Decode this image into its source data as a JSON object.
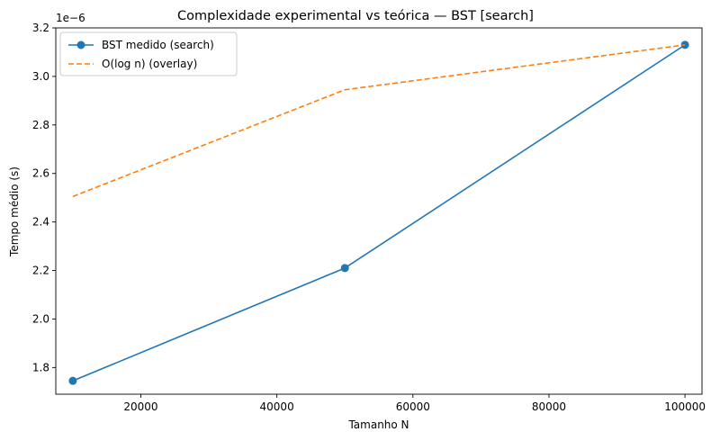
{
  "chart_data": {
    "type": "line",
    "title": "Complexidade experimental vs teórica — BST [search]",
    "xlabel": "Tamanho N",
    "ylabel": "Tempo médio (s)",
    "y_offset_text": "1e−6",
    "y_scale_exponent": -6,
    "xlim": [
      7500,
      102500
    ],
    "ylim": [
      1.69,
      3.2
    ],
    "x_ticks": [
      20000,
      40000,
      60000,
      80000,
      100000
    ],
    "x_tick_labels": [
      "20000",
      "40000",
      "60000",
      "80000",
      "100000"
    ],
    "y_ticks": [
      1.8,
      2.0,
      2.2,
      2.4,
      2.6,
      2.8,
      3.0,
      3.2
    ],
    "y_tick_labels": [
      "1.8",
      "2.0",
      "2.2",
      "2.4",
      "2.6",
      "2.8",
      "3.0",
      "3.2"
    ],
    "grid": false,
    "legend_position": "top-left",
    "series": [
      {
        "name": "BST medido (search)",
        "color": "#1f77b4",
        "style": "solid",
        "marker": "circle",
        "x": [
          10000,
          50000,
          100000
        ],
        "y": [
          1.745,
          2.21,
          3.13
        ]
      },
      {
        "name": "O(log n) (overlay)",
        "color": "#ff7f0e",
        "style": "dashed",
        "marker": "none",
        "x": [
          10000,
          50000,
          100000
        ],
        "y": [
          2.505,
          2.945,
          3.13
        ]
      }
    ]
  }
}
